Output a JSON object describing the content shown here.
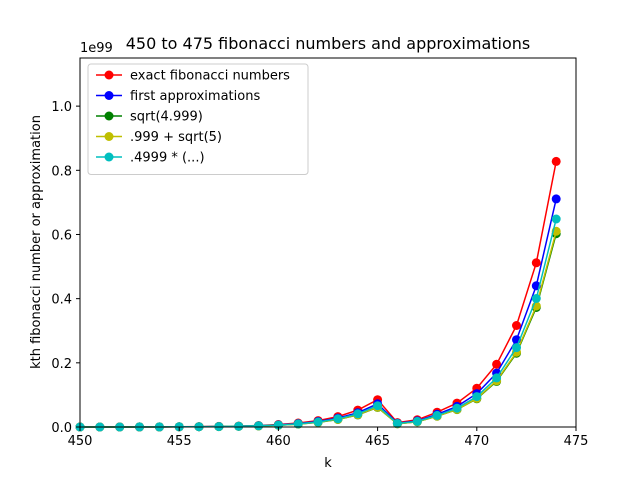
{
  "chart_data": {
    "type": "line",
    "title": "450 to 475 fibonacci numbers and approximations",
    "xlabel": "k",
    "ylabel": "kth fibonacci number or approximation",
    "y_offset_label": "1e99",
    "xlim": [
      450,
      475
    ],
    "ylim": [
      0,
      1.15
    ],
    "x_ticks": [
      450,
      455,
      460,
      465,
      470,
      475
    ],
    "x_tick_labels": [
      "450",
      "455",
      "460",
      "465",
      "470",
      "475"
    ],
    "y_ticks": [
      0,
      0.2,
      0.4,
      0.6,
      0.8,
      1.0
    ],
    "y_tick_labels": [
      "0.0",
      "0.2",
      "0.4",
      "0.6",
      "0.8",
      "1.0"
    ],
    "grid": false,
    "legend_position": "top-left",
    "x": [
      450,
      451,
      452,
      453,
      454,
      455,
      456,
      457,
      458,
      459,
      460,
      461,
      462,
      463,
      464,
      465,
      466,
      467,
      468,
      469,
      470,
      471,
      472,
      473,
      474
    ],
    "series": [
      {
        "name": "exact fibonacci numbers",
        "color": "#ff0000",
        "values": [
          6e-05,
          0.0001,
          0.00016,
          0.00026,
          0.00042,
          0.00068,
          0.0011,
          0.0018,
          0.0029,
          0.0047,
          0.0077,
          0.0124,
          0.0201,
          0.0325,
          0.0526,
          0.0851,
          0.0138,
          0.0223,
          0.0461,
          0.0746,
          0.1208,
          0.1954,
          0.3162,
          0.5116,
          0.8278
        ]
      },
      {
        "name": "first approximations",
        "color": "#0000ff",
        "values": [
          5e-05,
          9e-05,
          0.00014,
          0.00022,
          0.00036,
          0.00058,
          0.00094,
          0.0015,
          0.0025,
          0.004,
          0.0065,
          0.0105,
          0.0171,
          0.0276,
          0.0446,
          0.0722,
          0.0117,
          0.0189,
          0.0397,
          0.0643,
          0.104,
          0.168,
          0.272,
          0.44,
          0.711
        ]
      },
      {
        "name": "sqrt(4.999)",
        "color": "#008000",
        "values": [
          4e-05,
          7e-05,
          0.00011,
          0.00019,
          0.0003,
          0.00049,
          0.0008,
          0.0013,
          0.0021,
          0.0034,
          0.0055,
          0.0089,
          0.0144,
          0.0233,
          0.0377,
          0.061,
          0.0099,
          0.0161,
          0.0336,
          0.0543,
          0.0879,
          0.1422,
          0.2301,
          0.3723,
          0.6024
        ]
      },
      {
        "name": ".999 + sqrt(5)",
        "color": "#bfbf00",
        "values": [
          4e-05,
          7e-05,
          0.00011,
          0.00019,
          0.0003,
          0.0005,
          0.0008,
          0.0013,
          0.0021,
          0.0034,
          0.0056,
          0.009,
          0.0146,
          0.0236,
          0.0382,
          0.0618,
          0.01,
          0.0163,
          0.034,
          0.055,
          0.089,
          0.144,
          0.233,
          0.377,
          0.61
        ]
      },
      {
        "name": ".4999 * (...)",
        "color": "#00bfbf",
        "values": [
          5e-05,
          8e-05,
          0.00013,
          0.0002,
          0.00033,
          0.00053,
          0.00086,
          0.0014,
          0.0023,
          0.0037,
          0.006,
          0.0097,
          0.0157,
          0.0254,
          0.0411,
          0.0665,
          0.0108,
          0.0174,
          0.036,
          0.0585,
          0.0946,
          0.153,
          0.2476,
          0.4005,
          0.6481
        ]
      }
    ]
  }
}
